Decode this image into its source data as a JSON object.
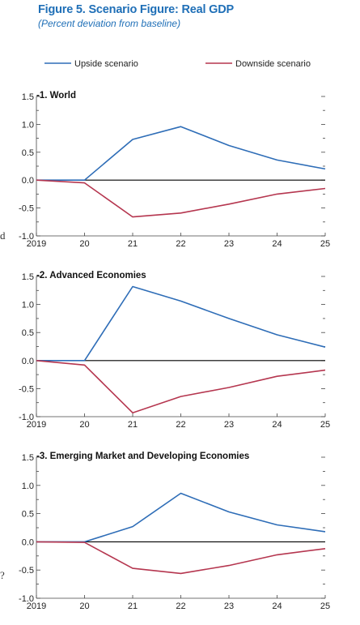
{
  "figure": {
    "title": "Figure 5.  Scenario Figure: Real GDP",
    "subtitle": "(Percent deviation from baseline)"
  },
  "colors": {
    "upside": "#2e6db7",
    "downside": "#b5364f",
    "zero_line": "#000000",
    "title": "#1f6fb7"
  },
  "legend": {
    "placement": "top",
    "items": [
      {
        "label": "Upside scenario",
        "color": "#2e6db7"
      },
      {
        "label": "Downside scenario",
        "color": "#b5364f"
      }
    ]
  },
  "chart_data": [
    {
      "type": "line",
      "title": "-1. World",
      "x": [
        "2019",
        "20",
        "21",
        "22",
        "23",
        "24",
        "25"
      ],
      "ylim": [
        -1.0,
        1.5
      ],
      "yticks": [
        "1.5",
        "1.0",
        "0.5",
        "0.0",
        "-0.5",
        "-1.0"
      ],
      "grid": false,
      "series": [
        {
          "name": "Upside scenario",
          "values": [
            0.0,
            0.0,
            0.73,
            0.96,
            0.62,
            0.36,
            0.2
          ]
        },
        {
          "name": "Downside scenario",
          "values": [
            0.0,
            -0.05,
            -0.66,
            -0.59,
            -0.43,
            -0.25,
            -0.15
          ]
        }
      ]
    },
    {
      "type": "line",
      "title": "-2. Advanced Economies",
      "x": [
        "2019",
        "20",
        "21",
        "22",
        "23",
        "24",
        "25"
      ],
      "ylim": [
        -1.0,
        1.5
      ],
      "yticks": [
        "1.5",
        "1.0",
        "0.5",
        "0.0",
        "-0.5",
        "-1.0"
      ],
      "grid": false,
      "series": [
        {
          "name": "Upside scenario",
          "values": [
            0.0,
            0.0,
            1.32,
            1.06,
            0.75,
            0.46,
            0.24
          ]
        },
        {
          "name": "Downside scenario",
          "values": [
            0.0,
            -0.08,
            -0.93,
            -0.64,
            -0.48,
            -0.28,
            -0.17
          ]
        }
      ]
    },
    {
      "type": "line",
      "title": "-3. Emerging Market and Developing  Economies",
      "x": [
        "2019",
        "20",
        "21",
        "22",
        "23",
        "24",
        "25"
      ],
      "ylim": [
        -1.0,
        1.5
      ],
      "yticks": [
        "1.5",
        "1.0",
        "0.5",
        "0.0",
        "-0.5",
        "-1.0"
      ],
      "grid": false,
      "series": [
        {
          "name": "Upside scenario",
          "values": [
            0.0,
            0.0,
            0.27,
            0.86,
            0.53,
            0.3,
            0.18
          ]
        },
        {
          "name": "Downside scenario",
          "values": [
            0.0,
            -0.01,
            -0.47,
            -0.56,
            -0.42,
            -0.23,
            -0.12
          ]
        }
      ]
    }
  ],
  "margin_marks": [
    "d",
    "?"
  ]
}
